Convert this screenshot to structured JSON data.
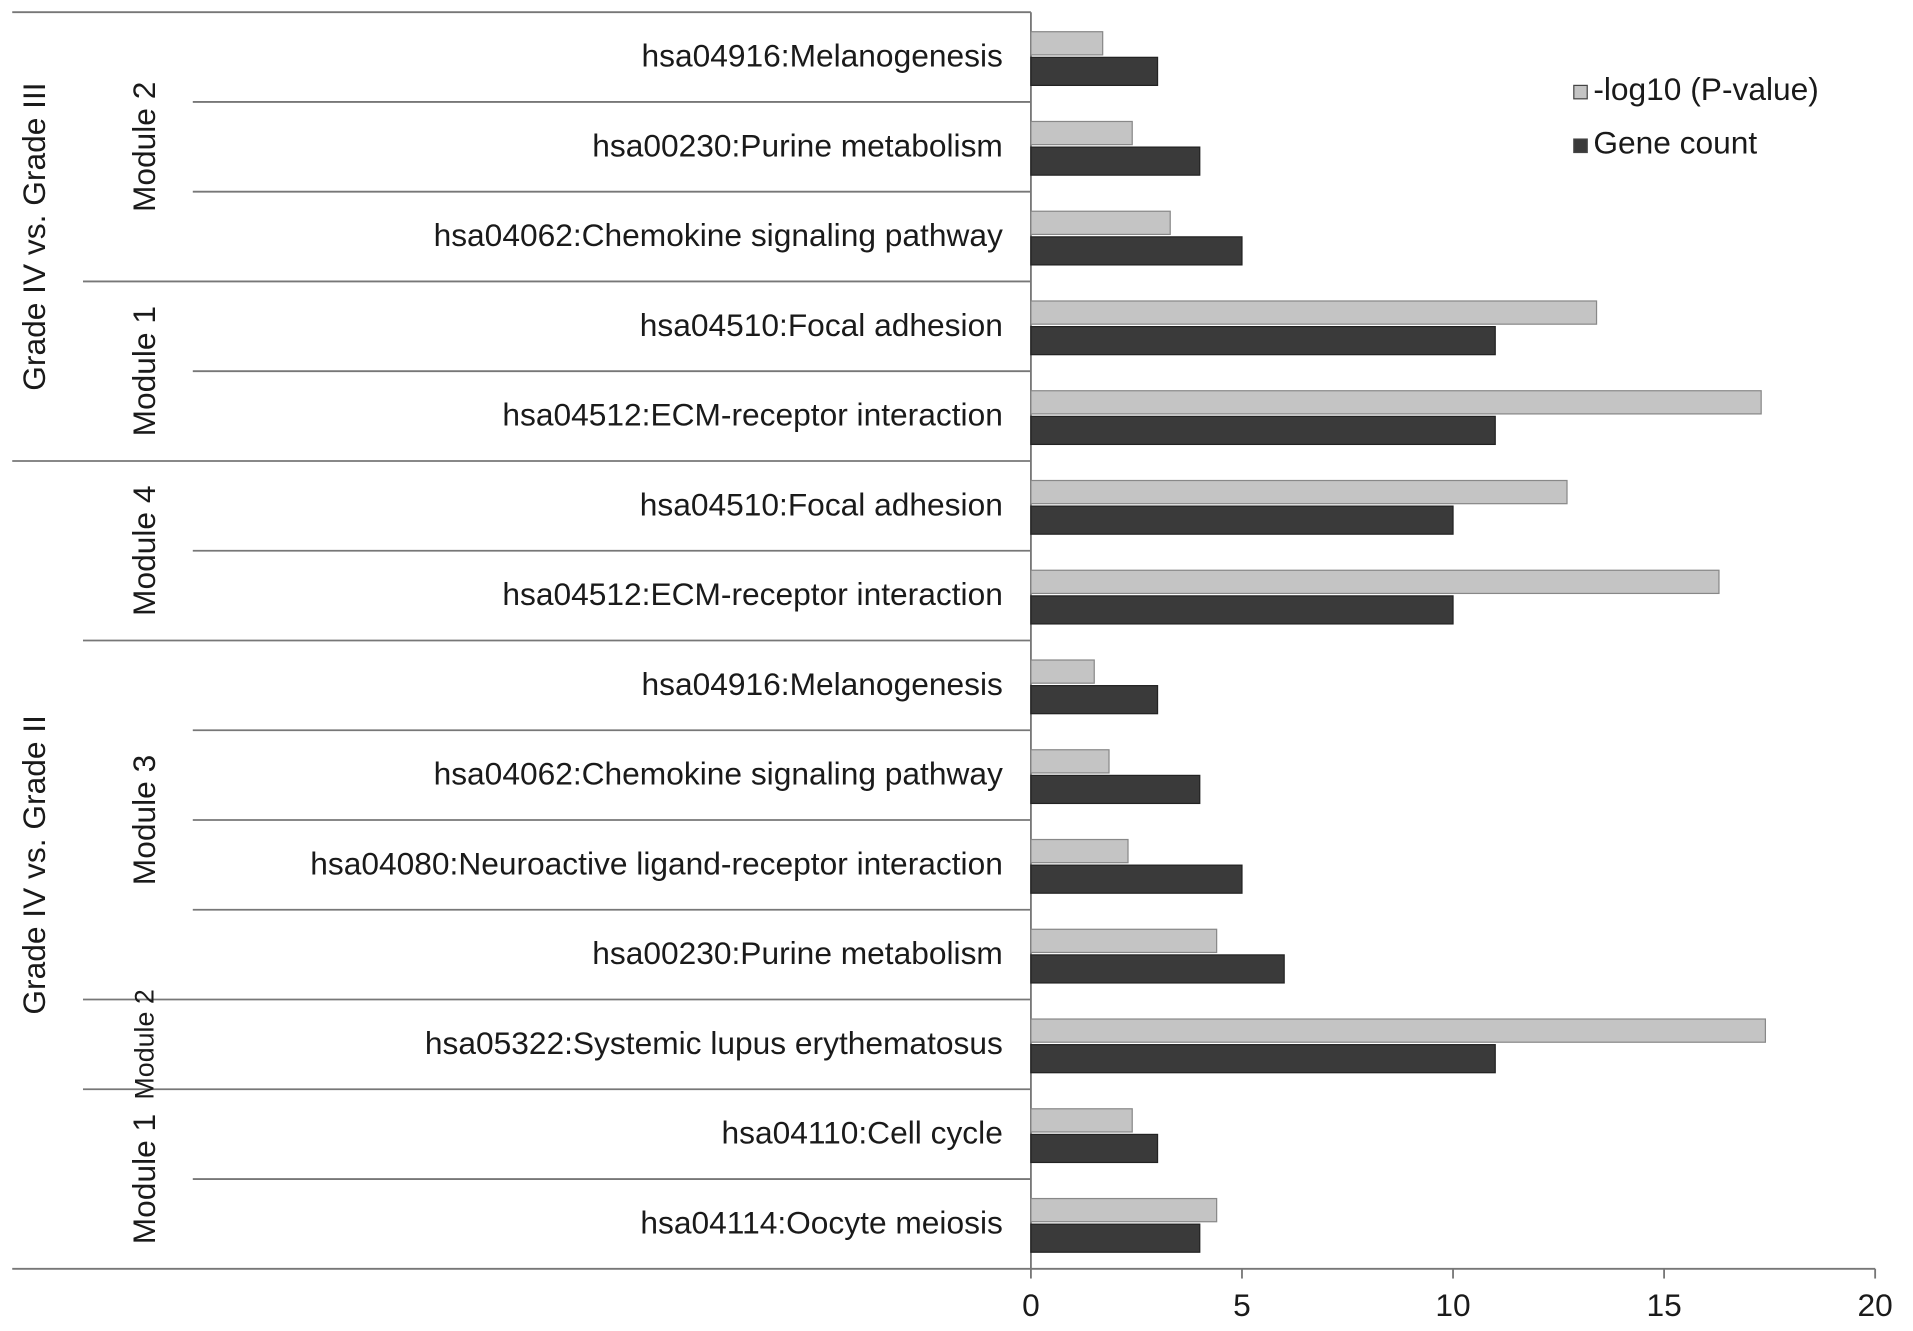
{
  "chart_data": {
    "type": "bar",
    "orientation": "horizontal",
    "groups": [
      {
        "label": "Grade IV vs. Grade III",
        "modules": [
          {
            "label": "Module 2",
            "categories": [
              "hsa04916:Melanogenesis",
              "hsa00230:Purine metabolism",
              "hsa04062:Chemokine signaling pathway"
            ]
          },
          {
            "label": "Module 1",
            "categories": [
              "hsa04510:Focal adhesion",
              "hsa04512:ECM-receptor interaction"
            ]
          }
        ]
      },
      {
        "label": "Grade IV vs. Grade II",
        "modules": [
          {
            "label": "Module 4",
            "categories": [
              "hsa04510:Focal adhesion",
              "hsa04512:ECM-receptor interaction"
            ]
          },
          {
            "label": "Module 3",
            "categories": [
              "hsa04916:Melanogenesis",
              "hsa04062:Chemokine signaling pathway",
              "hsa04080:Neuroactive ligand-receptor interaction",
              "hsa00230:Purine metabolism"
            ]
          },
          {
            "label": "Module 2",
            "categories": [
              "hsa05322:Systemic lupus erythematosus"
            ]
          },
          {
            "label": "Module 1",
            "categories": [
              "hsa04110:Cell cycle",
              "hsa04114:Oocyte meiosis"
            ]
          }
        ]
      }
    ],
    "series": [
      {
        "name": "-log10 (P-value)",
        "color": "#c4c4c4",
        "values": [
          1.7,
          2.4,
          3.3,
          13.4,
          17.3,
          12.7,
          16.3,
          1.5,
          1.85,
          2.3,
          4.4,
          17.4,
          2.4,
          4.4
        ]
      },
      {
        "name": "Gene count",
        "color": "#3a3a3a",
        "values": [
          3,
          4,
          5,
          11,
          11,
          10,
          10,
          3,
          4,
          5,
          6,
          11,
          3,
          4
        ]
      }
    ],
    "xlim": [
      0,
      20
    ],
    "xticks": [
      0,
      5,
      10,
      15,
      20
    ],
    "legend": "top-right"
  }
}
